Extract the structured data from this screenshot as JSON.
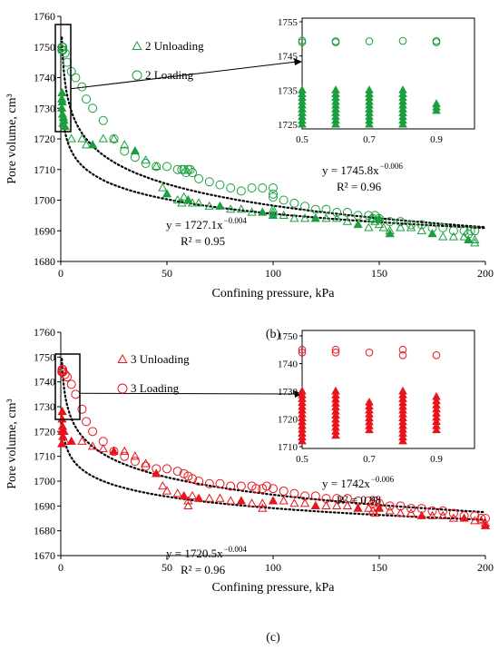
{
  "chart_data": [
    {
      "type": "scatter",
      "panel_label": "(b)",
      "xlabel": "Confining pressure, kPa",
      "ylabel": "Pore volume, cm³",
      "xlim": [
        0,
        200
      ],
      "ylim": [
        1680,
        1760
      ],
      "xticks": [
        0,
        50,
        100,
        150,
        200
      ],
      "yticks": [
        1680,
        1690,
        1700,
        1710,
        1720,
        1730,
        1740,
        1750,
        1760
      ],
      "color": "#1a9e3e",
      "legend": [
        {
          "label": "2 Unloading",
          "marker": "triangle"
        },
        {
          "label": "2 Loading",
          "marker": "circle"
        }
      ],
      "series": [
        {
          "name": "2 Unloading",
          "marker": "triangle",
          "x": [
            0.5,
            0.5,
            0.6,
            0.7,
            0.8,
            1,
            1.2,
            1.5,
            2,
            5,
            10,
            12,
            15,
            20,
            25,
            30,
            35,
            40,
            45,
            48,
            50,
            55,
            57,
            58,
            60,
            62,
            65,
            70,
            75,
            80,
            85,
            90,
            95,
            100,
            100,
            100,
            100,
            105,
            110,
            115,
            120,
            125,
            130,
            135,
            140,
            145,
            147,
            148,
            150,
            150,
            152,
            155,
            155,
            160,
            165,
            170,
            175,
            180,
            185,
            190,
            192,
            195,
            195
          ],
          "y": [
            1730,
            1733,
            1735,
            1732,
            1728,
            1725,
            1727,
            1726,
            1724,
            1720,
            1720,
            1718,
            1718,
            1720,
            1720,
            1718,
            1716,
            1713,
            1711,
            1704,
            1702,
            1700,
            1699,
            1701,
            1700,
            1699,
            1699,
            1698,
            1698,
            1697,
            1697,
            1696,
            1696,
            1696,
            1695,
            1697,
            1695,
            1695,
            1694,
            1694,
            1694,
            1694,
            1694,
            1693,
            1692,
            1691,
            1694,
            1693,
            1694,
            1692,
            1691,
            1690,
            1689,
            1691,
            1691,
            1690,
            1689,
            1688,
            1688,
            1688,
            1687,
            1687,
            1686
          ]
        },
        {
          "name": "2 Loading",
          "marker": "circle",
          "x": [
            0.5,
            0.6,
            0.7,
            0.8,
            0.9,
            1,
            2,
            3,
            5,
            7,
            10,
            12,
            15,
            20,
            25,
            30,
            35,
            40,
            45,
            50,
            55,
            57,
            58,
            59,
            60,
            61,
            62,
            65,
            70,
            75,
            80,
            85,
            90,
            95,
            100,
            100,
            100,
            105,
            110,
            115,
            120,
            125,
            130,
            135,
            140,
            145,
            147,
            148,
            150,
            155,
            160,
            165,
            170,
            175,
            180,
            185,
            190,
            192,
            193,
            195
          ],
          "y": [
            1749,
            1750,
            1749,
            1749,
            1750,
            1749,
            1748,
            1745,
            1742,
            1740,
            1737,
            1733,
            1730,
            1726,
            1720,
            1716,
            1714,
            1712,
            1711,
            1711,
            1710,
            1710,
            1710,
            1709,
            1710,
            1710,
            1709,
            1707,
            1706,
            1705,
            1704,
            1703,
            1704,
            1704,
            1702,
            1704,
            1701,
            1700,
            1699,
            1698,
            1697,
            1697,
            1696,
            1696,
            1695,
            1695,
            1694,
            1695,
            1694,
            1693,
            1693,
            1692,
            1692,
            1691,
            1691,
            1690,
            1690,
            1689,
            1690,
            1690
          ]
        }
      ],
      "trendlines": [
        {
          "equation_text": "y = 1745.8x",
          "exponent_text": "−0.006",
          "r2_text": "R² = 0.96",
          "a": 1745.8,
          "b": -0.006
        },
        {
          "equation_text": "y = 1727.1x",
          "exponent_text": "−0.004",
          "r2_text": "R² = 0.95",
          "a": 1727.1,
          "b": -0.004
        }
      ],
      "inset": {
        "xlim": [
          0.5,
          1.0
        ],
        "ylim": [
          1725,
          1755
        ],
        "xticks": [
          0.5,
          0.7,
          0.9
        ],
        "yticks": [
          1725,
          1735,
          1745,
          1755
        ],
        "unloading_x": [
          0.5,
          0.6,
          0.7,
          0.8,
          0.9
        ],
        "unloading_top": [
          1735,
          1735,
          1735,
          1735,
          1731
        ],
        "unloading_bottom": [
          1725,
          1725,
          1725,
          1725,
          1729
        ],
        "loading_x": [
          0.5,
          0.5,
          0.6,
          0.6,
          0.7,
          0.8,
          0.9,
          0.9
        ],
        "loading_y": [
          1749,
          1749.5,
          1749,
          1749.3,
          1749.3,
          1749.4,
          1749,
          1749.4
        ]
      }
    },
    {
      "type": "scatter",
      "panel_label": "(c)",
      "xlabel": "Confining pressure, kPa",
      "ylabel": "Pore volume, cm³",
      "xlim": [
        0,
        200
      ],
      "ylim": [
        1670,
        1760
      ],
      "xticks": [
        0,
        50,
        100,
        150,
        200
      ],
      "yticks": [
        1670,
        1680,
        1690,
        1700,
        1710,
        1720,
        1730,
        1740,
        1750,
        1760
      ],
      "color": "#e8141c",
      "legend": [
        {
          "label": "3 Unloading",
          "marker": "triangle"
        },
        {
          "label": "3 Loading",
          "marker": "circle"
        }
      ],
      "series": [
        {
          "name": "3 Unloading",
          "marker": "triangle",
          "x": [
            0.5,
            0.5,
            0.6,
            0.7,
            0.8,
            1,
            1.5,
            2,
            5,
            10,
            15,
            20,
            25,
            30,
            35,
            40,
            45,
            48,
            50,
            55,
            58,
            60,
            60,
            62,
            65,
            70,
            75,
            80,
            85,
            90,
            95,
            95,
            100,
            105,
            110,
            115,
            120,
            125,
            130,
            135,
            140,
            145,
            147,
            148,
            150,
            155,
            160,
            165,
            170,
            175,
            180,
            185,
            190,
            195,
            198,
            200,
            200
          ],
          "y": [
            1715,
            1720,
            1725,
            1728,
            1722,
            1718,
            1720,
            1716,
            1716,
            1716,
            1714,
            1713,
            1712,
            1712,
            1710,
            1707,
            1703,
            1698,
            1696,
            1695,
            1694,
            1692,
            1690,
            1694,
            1693,
            1693,
            1693,
            1692,
            1692,
            1691,
            1691,
            1689,
            1692,
            1692,
            1691,
            1691,
            1690,
            1690,
            1690,
            1690,
            1689,
            1689,
            1688,
            1687,
            1689,
            1688,
            1687,
            1687,
            1686,
            1686,
            1686,
            1685,
            1685,
            1684,
            1684,
            1683,
            1682
          ]
        },
        {
          "name": "3 Loading",
          "marker": "circle",
          "x": [
            0.5,
            0.6,
            0.7,
            0.8,
            0.9,
            1,
            2,
            3,
            5,
            7,
            10,
            12,
            15,
            20,
            25,
            30,
            35,
            40,
            45,
            50,
            55,
            58,
            60,
            62,
            65,
            70,
            75,
            80,
            85,
            90,
            92,
            95,
            97,
            100,
            105,
            110,
            115,
            120,
            125,
            130,
            135,
            140,
            145,
            147,
            148,
            150,
            155,
            160,
            165,
            170,
            175,
            180,
            185,
            190,
            195,
            198,
            200
          ],
          "y": [
            1744,
            1745,
            1745,
            1744,
            1745,
            1744,
            1743,
            1742,
            1739,
            1735,
            1729,
            1724,
            1720,
            1716,
            1712,
            1710,
            1708,
            1706,
            1705,
            1705,
            1704,
            1703,
            1702,
            1701,
            1700,
            1699,
            1699,
            1698,
            1698,
            1698,
            1697,
            1697,
            1698,
            1697,
            1696,
            1695,
            1694,
            1694,
            1693,
            1693,
            1693,
            1692,
            1692,
            1691,
            1692,
            1691,
            1690,
            1690,
            1689,
            1689,
            1688,
            1688,
            1687,
            1686,
            1686,
            1685,
            1685
          ]
        }
      ],
      "trendlines": [
        {
          "equation_text": "y = 1742x",
          "exponent_text": "−0.006",
          "r2_text": "R² = 0.98",
          "a": 1742,
          "b": -0.006
        },
        {
          "equation_text": "y = 1720.5x",
          "exponent_text": "−0.004",
          "r2_text": "R² = 0.96",
          "a": 1720.5,
          "b": -0.004
        }
      ],
      "inset": {
        "xlim": [
          0.5,
          1.0
        ],
        "ylim": [
          1710,
          1750
        ],
        "xticks": [
          0.5,
          0.7,
          0.9
        ],
        "yticks": [
          1710,
          1720,
          1730,
          1740,
          1750
        ],
        "unloading_x": [
          0.5,
          0.6,
          0.7,
          0.8,
          0.9
        ],
        "unloading_top": [
          1730,
          1730,
          1726,
          1730,
          1728
        ],
        "unloading_bottom": [
          1712,
          1714,
          1716,
          1712,
          1716
        ],
        "loading_x": [
          0.5,
          0.5,
          0.6,
          0.6,
          0.7,
          0.8,
          0.8,
          0.9
        ],
        "loading_y": [
          1744,
          1745,
          1744,
          1745,
          1744,
          1743,
          1745,
          1743
        ]
      }
    }
  ]
}
